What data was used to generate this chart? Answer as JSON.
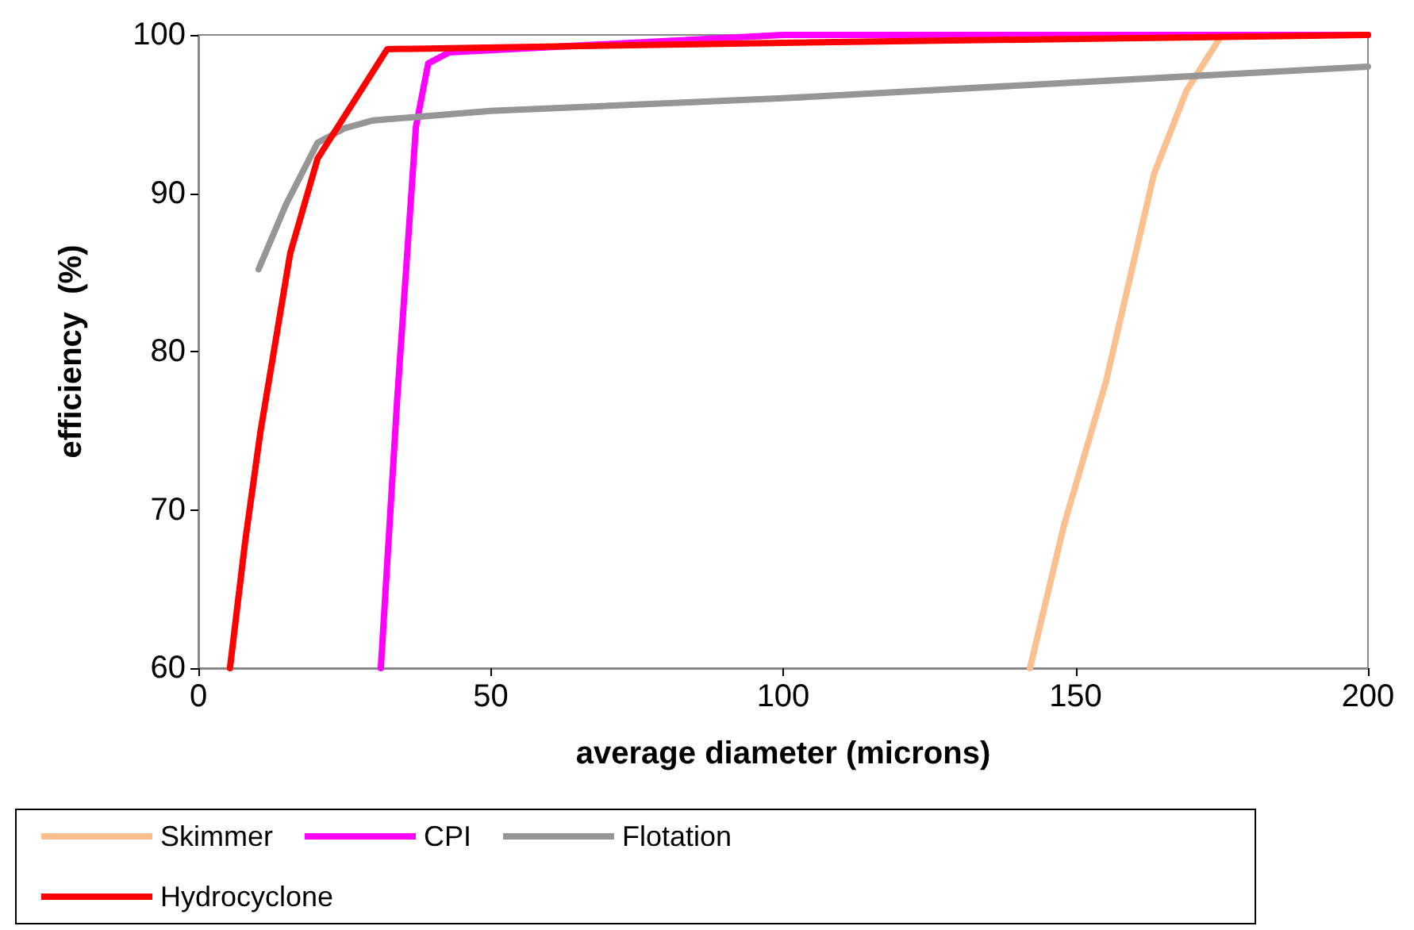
{
  "chart_data": {
    "type": "line",
    "xlabel": "average diameter (microns)",
    "ylabel": "efficiency  (%)",
    "xlim": [
      0,
      200
    ],
    "xticks": [
      0,
      50,
      100,
      150,
      200
    ],
    "ylim": [
      60,
      100
    ],
    "yticks": [
      60,
      70,
      80,
      90,
      100
    ],
    "grid": false,
    "legend": "bottom",
    "marker": "none",
    "line_style": "solid",
    "series": [
      {
        "name": "Skimmer",
        "color": "#fac090",
        "x": [
          142.2,
          148,
          155.2,
          163.4,
          169,
          174.5,
          175,
          200
        ],
        "values": [
          60,
          69,
          78.1,
          91.2,
          96.5,
          99.7,
          100,
          100
        ]
      },
      {
        "name": "CPI",
        "color": "#ff00ff",
        "x": [
          31.2,
          34,
          37.2,
          39.3,
          42.9,
          100,
          200
        ],
        "values": [
          60,
          77,
          94.2,
          98.2,
          98.9,
          100,
          100
        ]
      },
      {
        "name": "Flotation",
        "color": "#969696",
        "x": [
          10.3,
          15,
          20.4,
          25,
          29.9,
          50,
          100,
          200
        ],
        "values": [
          85.2,
          89.3,
          93.2,
          94.1,
          94.6,
          95.2,
          96,
          98
        ]
      },
      {
        "name": "Hydrocyclone",
        "color": "#ff0000",
        "x": [
          5.4,
          8,
          10.6,
          15.7,
          20.4,
          32.3,
          100,
          200
        ],
        "values": [
          60,
          68,
          74.9,
          86.2,
          92.2,
          99.1,
          99.5,
          100
        ]
      }
    ]
  }
}
